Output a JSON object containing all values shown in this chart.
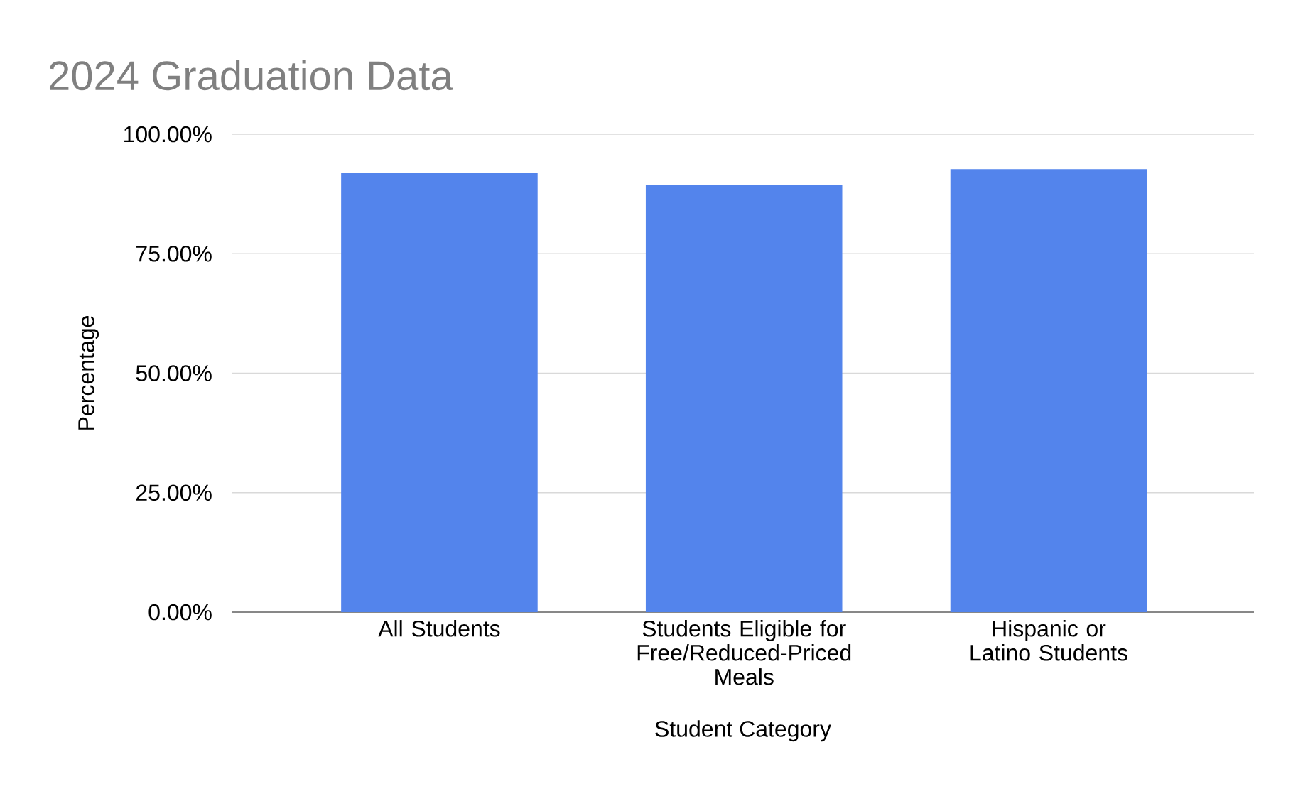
{
  "chart_data": {
    "type": "bar",
    "title": "2024 Graduation Data",
    "xlabel": "Student Category",
    "ylabel": "Percentage",
    "categories": [
      "All Students",
      "Students Eligible for Free/Reduced-Priced Meals",
      "Hispanic or Latino Students"
    ],
    "values": [
      91.9,
      89.3,
      92.7
    ],
    "color": "#5384ec",
    "ylim": [
      0,
      100
    ],
    "yticks": [
      {
        "value": 0,
        "label": "0.00%"
      },
      {
        "value": 25,
        "label": "25.00%"
      },
      {
        "value": 50,
        "label": "50.00%"
      },
      {
        "value": 75,
        "label": "75.00%"
      },
      {
        "value": 100,
        "label": "100.00%"
      }
    ],
    "grid": "y"
  }
}
